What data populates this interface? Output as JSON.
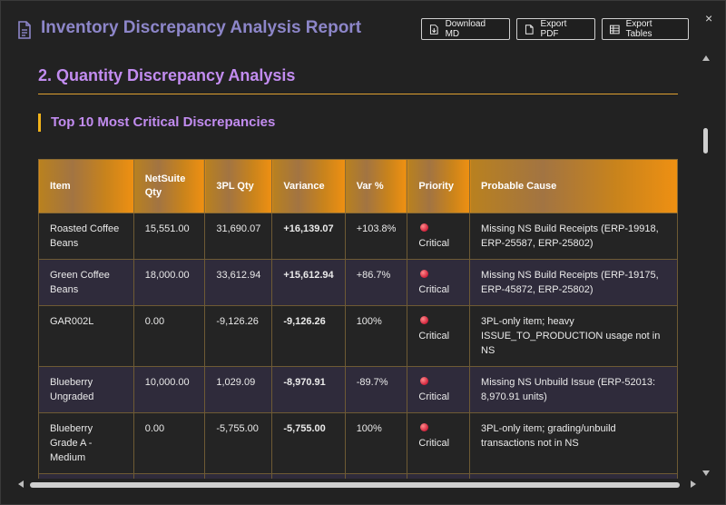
{
  "header": {
    "title": "Inventory Discrepancy Analysis Report",
    "buttons": {
      "download_md": "Download MD",
      "export_pdf": "Export PDF",
      "export_tables": "Export Tables"
    },
    "close": "×"
  },
  "section": {
    "title": "2. Quantity Discrepancy Analysis",
    "subtitle": "Top 10 Most Critical Discrepancies"
  },
  "table": {
    "columns": [
      "Item",
      "NetSuite Qty",
      "3PL Qty",
      "Variance",
      "Var %",
      "Priority",
      "Probable Cause"
    ],
    "rows": [
      {
        "item": "Roasted Coffee Beans",
        "ns_qty": "15,551.00",
        "tpl_qty": "31,690.07",
        "variance": "+16,139.07",
        "var_pct": "+103.8%",
        "priority": "Critical",
        "cause": "Missing NS Build Receipts (ERP-19918, ERP-25587, ERP-25802)"
      },
      {
        "item": "Green Coffee Beans",
        "ns_qty": "18,000.00",
        "tpl_qty": "33,612.94",
        "variance": "+15,612.94",
        "var_pct": "+86.7%",
        "priority": "Critical",
        "cause": "Missing NS Build Receipts (ERP-19175, ERP-45872, ERP-25802)"
      },
      {
        "item": "GAR002L",
        "ns_qty": "0.00",
        "tpl_qty": "-9,126.26",
        "variance": "-9,126.26",
        "var_pct": "100%",
        "priority": "Critical",
        "cause": "3PL-only item; heavy ISSUE_TO_PRODUCTION usage not in NS"
      },
      {
        "item": "Blueberry Ungraded",
        "ns_qty": "10,000.00",
        "tpl_qty": "1,029.09",
        "variance": "-8,970.91",
        "var_pct": "-89.7%",
        "priority": "Critical",
        "cause": "Missing NS Unbuild Issue (ERP-52013: 8,970.91 units)"
      },
      {
        "item": "Blueberry Grade A - Medium",
        "ns_qty": "0.00",
        "tpl_qty": "-5,755.00",
        "variance": "-5,755.00",
        "var_pct": "100%",
        "priority": "Critical",
        "cause": "3PL-only item; grading/unbuild transactions not in NS"
      }
    ]
  },
  "colors": {
    "title": "#8d86c9",
    "section_title": "#c28cf0",
    "accent": "#e0a030",
    "critical": "#d0213b"
  },
  "icons": [
    "document-icon",
    "download-icon",
    "file-export-icon",
    "table-icon",
    "close-icon"
  ]
}
